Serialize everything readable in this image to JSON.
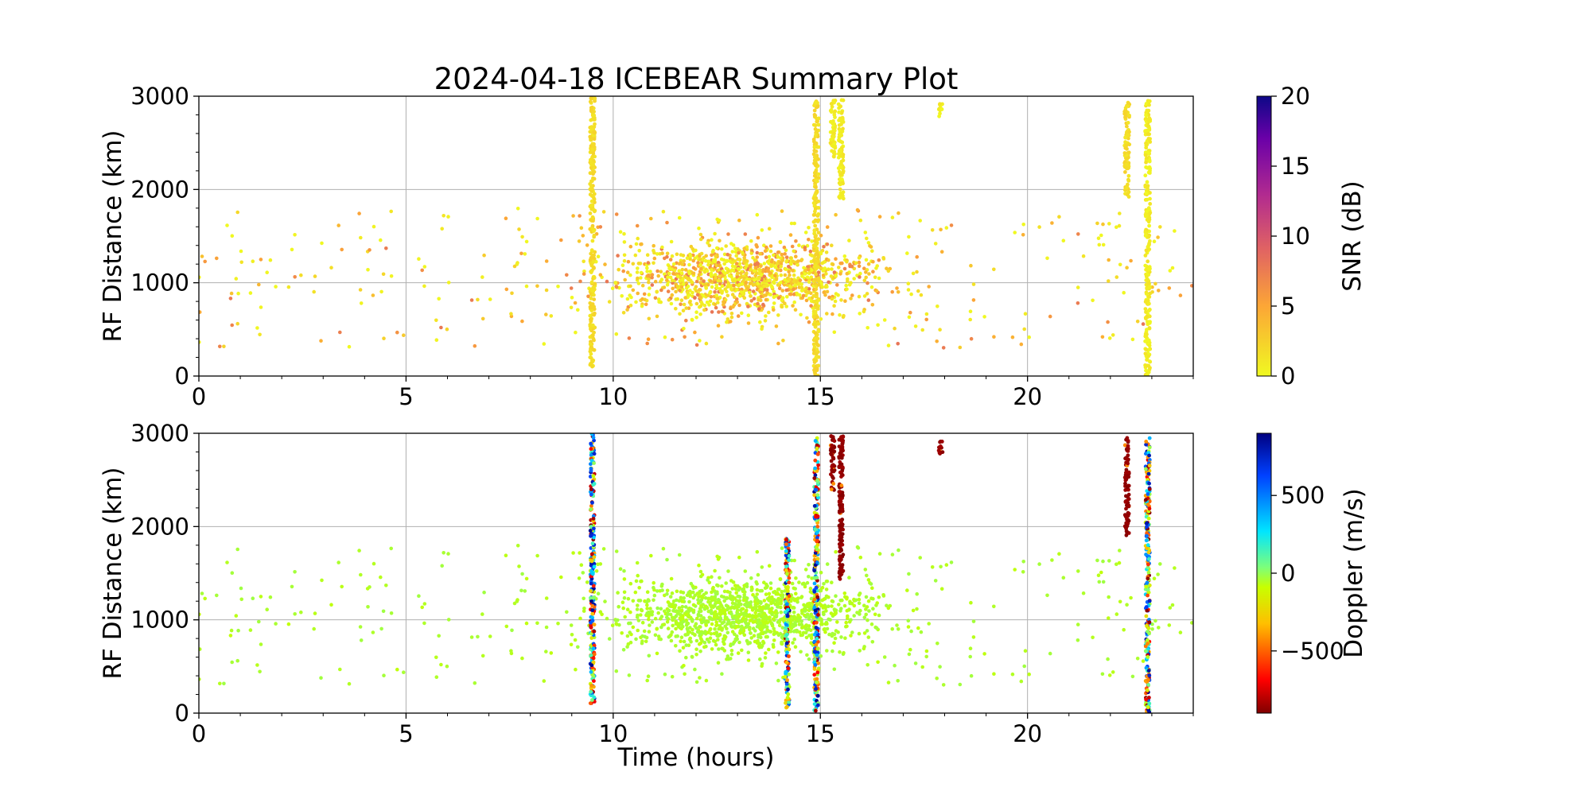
{
  "figure": {
    "title": "2024-04-18 ICEBEAR Summary Plot",
    "xlabel": "Time (hours)"
  },
  "chart_data": [
    {
      "type": "scatter",
      "panel": "top",
      "ylabel": "RF Distance (km)",
      "xlim": [
        0,
        24
      ],
      "ylim": [
        0,
        3000
      ],
      "xticks": [
        0,
        5,
        10,
        15,
        20
      ],
      "yticks": [
        0,
        1000,
        2000,
        3000
      ],
      "grid": true,
      "color_variable": "SNR",
      "colorbar": {
        "label": "SNR (dB)",
        "range": [
          0,
          20
        ],
        "ticks": [
          0,
          5,
          10,
          15,
          20
        ],
        "colormap": "plasma_r"
      },
      "columns": [
        {
          "x": 9.5,
          "y_range": [
            100,
            3000
          ],
          "snr": 1
        },
        {
          "x": 14.9,
          "y_range": [
            0,
            2950
          ],
          "snr": 1
        },
        {
          "x": 15.3,
          "y_range": [
            2350,
            2970
          ],
          "snr": 0
        },
        {
          "x": 15.5,
          "y_range": [
            1900,
            2970
          ],
          "snr": 0
        },
        {
          "x": 17.9,
          "y_range": [
            2780,
            2920
          ],
          "snr": 0
        },
        {
          "x": 22.4,
          "y_range": [
            1900,
            2950
          ],
          "snr": 1
        },
        {
          "x": 22.9,
          "y_range": [
            0,
            2950
          ],
          "snr": 0
        }
      ],
      "cloud": {
        "description": "scattered points, mostly SNR 0-5 dB, densest 10-17 h between 400 and 1800 km",
        "x_range": [
          0,
          24
        ],
        "y_range": [
          0,
          2000
        ],
        "snr_range": [
          0,
          8
        ]
      }
    },
    {
      "type": "scatter",
      "panel": "bottom",
      "ylabel": "RF Distance (km)",
      "xlabel": "Time (hours)",
      "xlim": [
        0,
        24
      ],
      "ylim": [
        0,
        3000
      ],
      "xticks": [
        0,
        5,
        10,
        15,
        20
      ],
      "yticks": [
        0,
        1000,
        2000,
        3000
      ],
      "grid": true,
      "color_variable": "Doppler",
      "colorbar": {
        "label": "Doppler (m/s)",
        "range": [
          -900,
          900
        ],
        "ticks": [
          -500,
          0,
          500
        ],
        "tick_labels": [
          "−500",
          "0",
          "500"
        ],
        "colormap": "jet_r"
      },
      "columns": [
        {
          "x": 9.5,
          "y_range": [
            100,
            3000
          ],
          "doppler": "mixed"
        },
        {
          "x": 14.2,
          "y_range": [
            50,
            1900
          ],
          "doppler": "mixed"
        },
        {
          "x": 14.9,
          "y_range": [
            0,
            2950
          ],
          "doppler": "mixed"
        },
        {
          "x": 15.3,
          "y_range": [
            2350,
            2970
          ],
          "doppler": -900
        },
        {
          "x": 15.5,
          "y_range": [
            1400,
            2970
          ],
          "doppler": -900
        },
        {
          "x": 17.9,
          "y_range": [
            2780,
            2920
          ],
          "doppler": -900
        },
        {
          "x": 22.4,
          "y_range": [
            1900,
            2950
          ],
          "doppler": -900
        },
        {
          "x": 22.9,
          "y_range": [
            0,
            2950
          ],
          "doppler": "mixed"
        }
      ],
      "cloud": {
        "description": "scattered points, Doppler near -50 m/s (light green), same positions as top panel",
        "doppler_value": -50
      }
    }
  ],
  "colors": {
    "grid": "#b0b0b0",
    "axes": "#000000",
    "background": "#ffffff"
  }
}
